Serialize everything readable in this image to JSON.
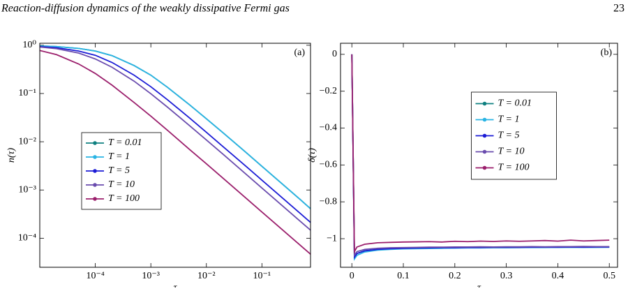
{
  "header": {
    "title": "Reaction-diffusion dynamics of the weakly dissipative Fermi gas",
    "page_number": "23"
  },
  "chart_data": [
    {
      "type": "line",
      "panel_label": "(a)",
      "xlabel": "τ",
      "ylabel": "n(τ)",
      "xscale": "log",
      "yscale": "log",
      "legend_loc": "lower left",
      "xlim": [
        1e-05,
        0.75
      ],
      "ylim": [
        2.5e-05,
        1.1
      ],
      "xticks": [
        {
          "value": 0.0001,
          "label": "10⁻⁴"
        },
        {
          "value": 0.001,
          "label": "10⁻³"
        },
        {
          "value": 0.01,
          "label": "10⁻²"
        },
        {
          "value": 0.1,
          "label": "10⁻¹"
        }
      ],
      "yticks": [
        {
          "value": 0.0001,
          "label": "10⁻⁴"
        },
        {
          "value": 0.001,
          "label": "10⁻³"
        },
        {
          "value": 0.01,
          "label": "10⁻²"
        },
        {
          "value": 0.1,
          "label": "10⁻¹"
        },
        {
          "value": 1,
          "label": "10⁰"
        }
      ],
      "x": [
        1e-05,
        2e-05,
        5e-05,
        0.0001,
        0.0002,
        0.0005,
        0.001,
        0.002,
        0.005,
        0.01,
        0.02,
        0.05,
        0.1,
        0.2,
        0.5,
        0.75
      ],
      "series": [
        {
          "name": "T = 0.01",
          "color": "#0f8080",
          "values": [
            0.97,
            0.94,
            0.86,
            0.76,
            0.61,
            0.38,
            0.24,
            0.134,
            0.058,
            0.03,
            0.0153,
            0.0062,
            0.0031,
            0.00155,
            0.00062,
            0.00041
          ]
        },
        {
          "name": "T = 1",
          "color": "#2ab4e4",
          "values": [
            0.97,
            0.94,
            0.86,
            0.76,
            0.61,
            0.38,
            0.24,
            0.134,
            0.058,
            0.03,
            0.0153,
            0.0062,
            0.0031,
            0.00155,
            0.00062,
            0.00041
          ]
        },
        {
          "name": "T = 5",
          "color": "#1c1cd6",
          "values": [
            0.94,
            0.89,
            0.76,
            0.62,
            0.44,
            0.24,
            0.138,
            0.074,
            0.031,
            0.0157,
            0.0079,
            0.0032,
            0.0016,
            0.0008,
            0.00032,
            0.000213
          ]
        },
        {
          "name": "T = 10",
          "color": "#6a4cae",
          "values": [
            0.92,
            0.85,
            0.69,
            0.52,
            0.35,
            0.18,
            0.099,
            0.052,
            0.0215,
            0.0109,
            0.0055,
            0.0022,
            0.0011,
            0.00055,
            0.00022,
            0.000147
          ]
        },
        {
          "name": "T = 100",
          "color": "#9b1f6c",
          "values": [
            0.78,
            0.64,
            0.41,
            0.26,
            0.149,
            0.065,
            0.034,
            0.0172,
            0.0069,
            0.0035,
            0.00175,
            0.0007,
            0.00035,
            0.000175,
            7e-05,
            4.67e-05
          ]
        }
      ]
    },
    {
      "type": "line",
      "panel_label": "(b)",
      "xlabel": "τ",
      "ylabel": "δ(τ)",
      "xscale": "linear",
      "yscale": "linear",
      "legend_loc": "upper center",
      "xlim": [
        -0.022,
        0.516
      ],
      "ylim": [
        -1.155,
        0.06
      ],
      "xticks": [
        0,
        0.1,
        0.2,
        0.3,
        0.4,
        0.5
      ],
      "yticks": [
        0,
        {
          "value": -0.2,
          "label": "−0.2"
        },
        {
          "value": -0.4,
          "label": "−0.4"
        },
        {
          "value": -0.6,
          "label": "−0.6"
        },
        {
          "value": -0.8,
          "label": "−0.8"
        },
        {
          "value": -1,
          "label": "−1"
        }
      ],
      "x": [
        0,
        0.005,
        0.01,
        0.025,
        0.05,
        0.075,
        0.1,
        0.125,
        0.15,
        0.175,
        0.2,
        0.225,
        0.25,
        0.275,
        0.3,
        0.325,
        0.35,
        0.375,
        0.4,
        0.425,
        0.45,
        0.475,
        0.5
      ],
      "series": [
        {
          "name": "T = 0.01",
          "color": "#0f8080",
          "values": [
            0,
            -1.1,
            -1.08,
            -1.065,
            -1.058,
            -1.055,
            -1.053,
            -1.052,
            -1.051,
            -1.05,
            -1.05,
            -1.049,
            -1.049,
            -1.048,
            -1.048,
            -1.048,
            -1.047,
            -1.047,
            -1.047,
            -1.046,
            -1.046,
            -1.046,
            -1.046
          ]
        },
        {
          "name": "T = 1",
          "color": "#2ab4e4",
          "values": [
            0,
            -1.11,
            -1.09,
            -1.072,
            -1.062,
            -1.058,
            -1.055,
            -1.054,
            -1.053,
            -1.052,
            -1.051,
            -1.05,
            -1.05,
            -1.049,
            -1.049,
            -1.048,
            -1.048,
            -1.048,
            -1.047,
            -1.047,
            -1.047,
            -1.047,
            -1.046
          ]
        },
        {
          "name": "T = 5",
          "color": "#1c1cd6",
          "values": [
            0,
            -1.1,
            -1.08,
            -1.066,
            -1.058,
            -1.054,
            -1.052,
            -1.051,
            -1.05,
            -1.049,
            -1.049,
            -1.048,
            -1.048,
            -1.047,
            -1.047,
            -1.047,
            -1.046,
            -1.046,
            -1.046,
            -1.045,
            -1.046,
            -1.045,
            -1.045
          ]
        },
        {
          "name": "T = 10",
          "color": "#6a4cae",
          "values": [
            0,
            -1.09,
            -1.07,
            -1.058,
            -1.052,
            -1.049,
            -1.048,
            -1.047,
            -1.046,
            -1.046,
            -1.045,
            -1.045,
            -1.044,
            -1.045,
            -1.044,
            -1.044,
            -1.043,
            -1.044,
            -1.043,
            -1.043,
            -1.042,
            -1.043,
            -1.043
          ]
        },
        {
          "name": "T = 100",
          "color": "#9b1f6c",
          "values": [
            0,
            -1.07,
            -1.045,
            -1.03,
            -1.022,
            -1.02,
            -1.018,
            -1.017,
            -1.016,
            -1.018,
            -1.014,
            -1.016,
            -1.013,
            -1.015,
            -1.012,
            -1.014,
            -1.012,
            -1.01,
            -1.013,
            -1.008,
            -1.012,
            -1.01,
            -1.008
          ]
        }
      ]
    }
  ]
}
